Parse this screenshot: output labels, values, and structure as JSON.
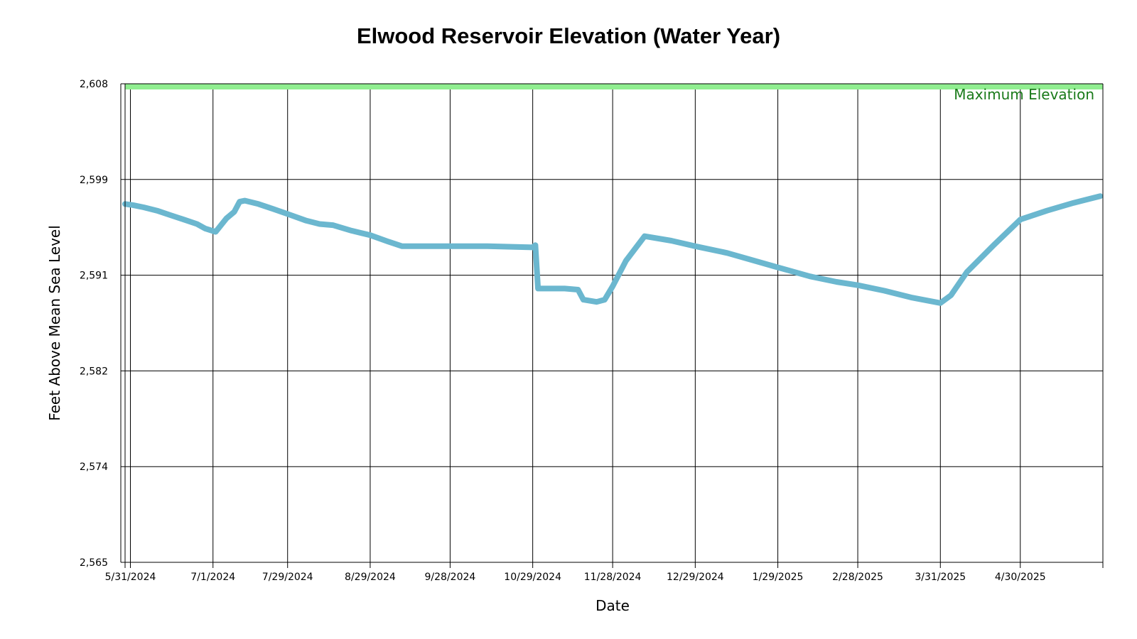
{
  "chart_data": {
    "type": "line",
    "title": "Elwood Reservoir Elevation (Water Year)",
    "xlabel": "Date",
    "ylabel": "Feet Above Mean Sea Level",
    "ylim": [
      2565,
      2608
    ],
    "y_ticks": [
      "2,565",
      "2,574",
      "2,582",
      "2,591",
      "2,599",
      "2,608"
    ],
    "y_tick_values": [
      2565,
      2573.6,
      2582.2,
      2590.8,
      2599.4,
      2608
    ],
    "x_ticks": [
      "5/31/2024",
      "7/1/2024",
      "7/29/2024",
      "8/29/2024",
      "9/28/2024",
      "10/29/2024",
      "11/28/2024",
      "12/29/2024",
      "1/29/2025",
      "2/28/2025",
      "3/31/2025",
      "4/30/2025"
    ],
    "x_tick_dates": [
      "2024-05-31",
      "2024-07-01",
      "2024-07-29",
      "2024-08-29",
      "2024-09-28",
      "2024-10-29",
      "2024-11-28",
      "2024-12-29",
      "2025-01-29",
      "2025-02-28",
      "2025-03-31",
      "2025-04-30"
    ],
    "x_range": [
      "2024-05-29",
      "2025-05-31"
    ],
    "grid": true,
    "max_elevation": {
      "label": "Maximum Elevation",
      "value": 2608,
      "color": "#90ee90"
    },
    "series": [
      {
        "color": "#6bb7cf",
        "points": [
          [
            "2024-05-29",
            2597.2
          ],
          [
            "2024-06-01",
            2597.1
          ],
          [
            "2024-06-05",
            2596.9
          ],
          [
            "2024-06-10",
            2596.6
          ],
          [
            "2024-06-15",
            2596.2
          ],
          [
            "2024-06-20",
            2595.8
          ],
          [
            "2024-06-25",
            2595.4
          ],
          [
            "2024-06-28",
            2595.0
          ],
          [
            "2024-07-02",
            2594.7
          ],
          [
            "2024-07-06",
            2595.9
          ],
          [
            "2024-07-09",
            2596.5
          ],
          [
            "2024-07-11",
            2597.4
          ],
          [
            "2024-07-13",
            2597.5
          ],
          [
            "2024-07-18",
            2597.2
          ],
          [
            "2024-07-23",
            2596.8
          ],
          [
            "2024-07-29",
            2596.3
          ],
          [
            "2024-08-05",
            2595.7
          ],
          [
            "2024-08-10",
            2595.4
          ],
          [
            "2024-08-15",
            2595.3
          ],
          [
            "2024-08-22",
            2594.8
          ],
          [
            "2024-08-29",
            2594.4
          ],
          [
            "2024-09-05",
            2593.8
          ],
          [
            "2024-09-10",
            2593.4
          ],
          [
            "2024-09-28",
            2593.4
          ],
          [
            "2024-10-12",
            2593.4
          ],
          [
            "2024-10-29",
            2593.3
          ],
          [
            "2024-10-30",
            2593.5
          ],
          [
            "2024-10-31",
            2589.6
          ],
          [
            "2024-11-10",
            2589.6
          ],
          [
            "2024-11-15",
            2589.5
          ],
          [
            "2024-11-17",
            2588.6
          ],
          [
            "2024-11-22",
            2588.4
          ],
          [
            "2024-11-25",
            2588.6
          ],
          [
            "2024-11-28",
            2589.8
          ],
          [
            "2024-12-03",
            2592.1
          ],
          [
            "2024-12-10",
            2594.3
          ],
          [
            "2024-12-20",
            2593.9
          ],
          [
            "2024-12-29",
            2593.4
          ],
          [
            "2025-01-10",
            2592.8
          ],
          [
            "2025-01-29",
            2591.5
          ],
          [
            "2025-02-10",
            2590.7
          ],
          [
            "2025-02-20",
            2590.2
          ],
          [
            "2025-02-28",
            2589.9
          ],
          [
            "2025-03-10",
            2589.4
          ],
          [
            "2025-03-20",
            2588.8
          ],
          [
            "2025-03-31",
            2588.3
          ],
          [
            "2025-04-04",
            2589.0
          ],
          [
            "2025-04-10",
            2591.1
          ],
          [
            "2025-04-20",
            2593.5
          ],
          [
            "2025-04-30",
            2595.8
          ],
          [
            "2025-05-10",
            2596.6
          ],
          [
            "2025-05-20",
            2597.3
          ],
          [
            "2025-05-30",
            2597.9
          ]
        ]
      }
    ]
  }
}
